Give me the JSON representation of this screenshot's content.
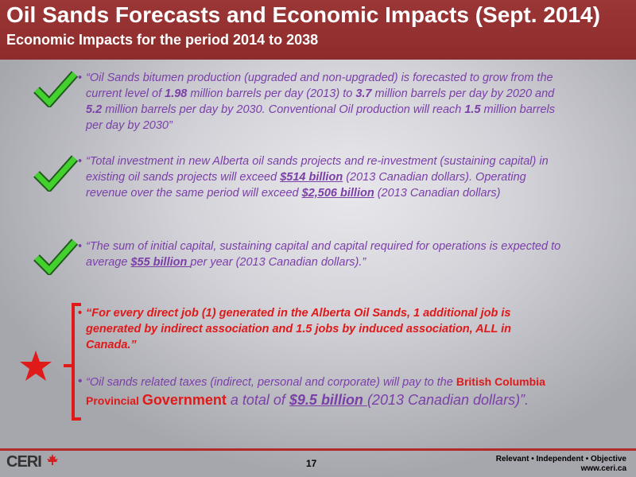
{
  "header": {
    "title": "Oil Sands Forecasts and Economic Impacts (Sept. 2014)",
    "subtitle": "Economic Impacts for the period 2014 to 2038"
  },
  "bullets": {
    "b1": {
      "t1": "“Oil Sands bitumen production (upgraded and non-upgraded) is forecasted to grow from the current level of ",
      "v1": "1.98",
      "t2": " million barrels per day (2013) to ",
      "v2": "3.7",
      "t3": " million barrels per day by 2020 and ",
      "v3": "5.2",
      "t4": " million barrels per day by 2030. Conventional Oil production will reach ",
      "v4": "1.5",
      "t5": " million barrels per day by 2030”"
    },
    "b2": {
      "t1": "“Total investment in new Alberta oil sands projects and re-investment (sustaining capital) in existing oil sands projects will exceed ",
      "v1": "$514 billion",
      "t2": " (2013 Canadian dollars). Operating revenue over the same period will exceed ",
      "v2": "$2,506 billion",
      "t3": " (2013 Canadian dollars)"
    },
    "b3": {
      "t1": "“The sum of initial capital, sustaining capital and capital required for operations is expected to average ",
      "v1": "$55 billion ",
      "t2": "per year (2013 Canadian dollars).”"
    },
    "b4": {
      "text": "“For every direct job (1) generated in the Alberta Oil Sands, 1 additional job is generated by indirect association and 1.5 jobs by induced association, ALL in Canada.”"
    },
    "b5": {
      "t1": "“Oil sands related taxes (indirect, personal and corporate) will pay to the ",
      "r1": "British Columbia Provincial ",
      "r2": "Government",
      "t2": " a total of ",
      "v1": "$9.5 billion ",
      "t3": "(2013 Canadian dollars)”."
    },
    "marker": "•"
  },
  "footer": {
    "page_number": "17",
    "tagline": "Relevant • Independent • Objective",
    "url": "www.ceri.ca",
    "logo_text": "CERI"
  },
  "colors": {
    "header_bg": "#8e2c2c",
    "bullet_text": "#7b3fa8",
    "highlight_red": "#e01919",
    "check_green": "#43d12e"
  }
}
